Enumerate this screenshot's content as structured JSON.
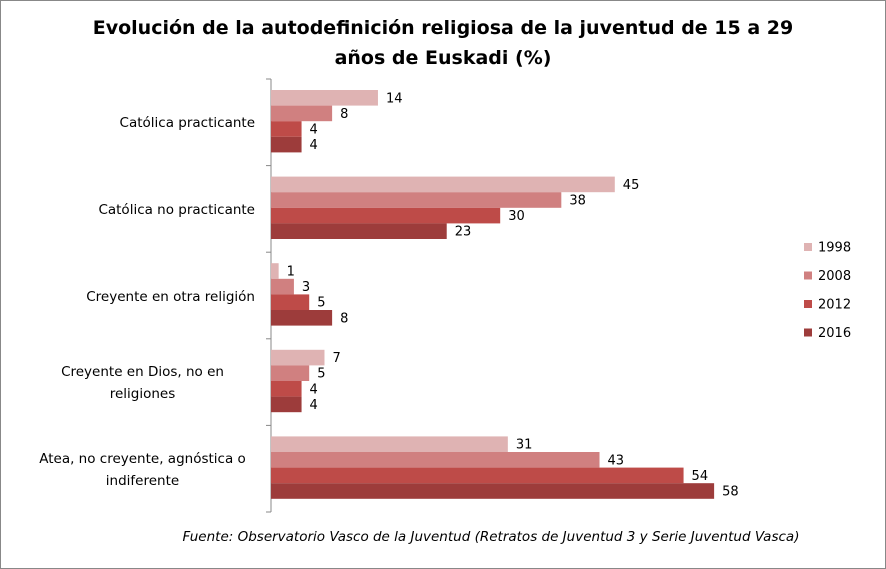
{
  "chart_data": {
    "type": "bar",
    "orientation": "horizontal",
    "title": "Evolución de la autodefinición religiosa de la juventud de 15 a 29 años de Euskadi (%)",
    "categories": [
      "Católica practicante",
      "Católica no practicante",
      "Creyente en otra religión",
      "Creyente en Dios, no en religiones",
      "Atea, no creyente, agnóstica o indiferente"
    ],
    "series": [
      {
        "name": "1998",
        "color": "#dfb3b3",
        "values": [
          14,
          45,
          1,
          7,
          31
        ]
      },
      {
        "name": "2008",
        "color": "#d08080",
        "values": [
          8,
          38,
          3,
          5,
          43
        ]
      },
      {
        "name": "2012",
        "color": "#be4b48",
        "values": [
          4,
          30,
          5,
          4,
          54
        ]
      },
      {
        "name": "2016",
        "color": "#9d3c3b",
        "values": [
          4,
          23,
          8,
          4,
          58
        ]
      }
    ],
    "legend": "right",
    "source": "Fuente: Observatorio Vasco de la Juventud (Retratos de Juventud 3 y Serie Juventud Vasca)"
  }
}
